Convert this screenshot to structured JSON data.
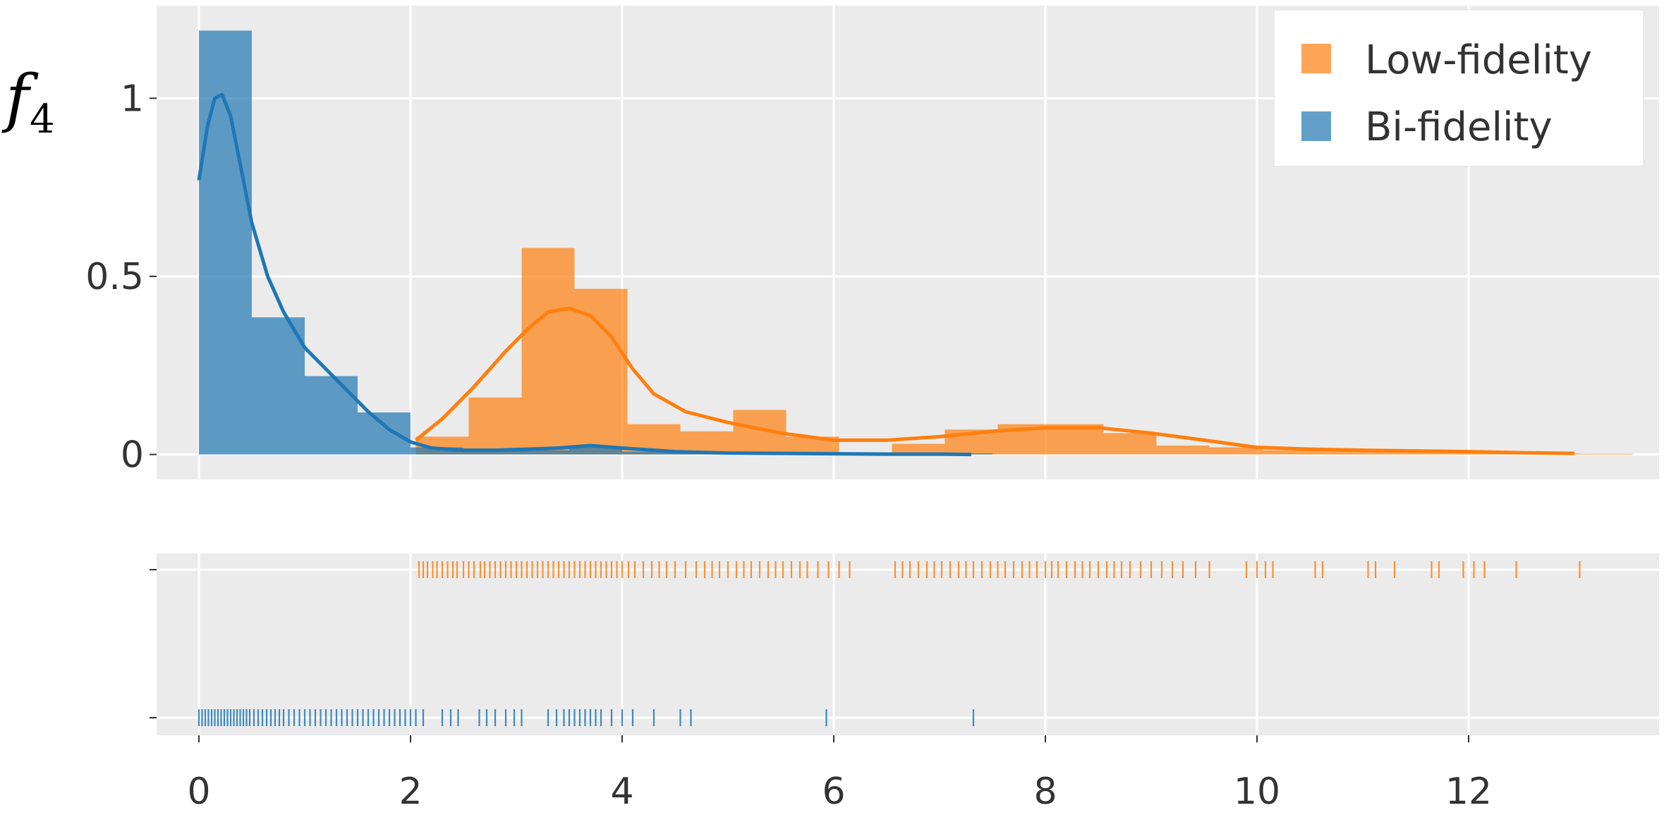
{
  "chart_data": {
    "type": "bar",
    "ylabel": "f",
    "ylabel_subscript": "4",
    "xlim": [
      -0.4,
      13.8
    ],
    "xticks": [
      0,
      2,
      4,
      6,
      8,
      10,
      12
    ],
    "ylim": [
      -0.07,
      1.26
    ],
    "yticks": [
      0,
      0.5,
      1
    ],
    "ytick_labels": [
      "0",
      "0.5",
      "1"
    ],
    "grid": true,
    "legend_position": "top-right",
    "series": [
      {
        "name": "Low-fidelity",
        "color": "#ff7f0e",
        "histogram": [
          {
            "x0": 2.05,
            "x1": 2.55,
            "y": 0.05
          },
          {
            "x0": 2.55,
            "x1": 3.05,
            "y": 0.16
          },
          {
            "x0": 3.05,
            "x1": 3.55,
            "y": 0.58
          },
          {
            "x0": 3.55,
            "x1": 4.05,
            "y": 0.465
          },
          {
            "x0": 4.05,
            "x1": 4.55,
            "y": 0.085
          },
          {
            "x0": 4.55,
            "x1": 5.05,
            "y": 0.065
          },
          {
            "x0": 5.05,
            "x1": 5.55,
            "y": 0.125
          },
          {
            "x0": 5.55,
            "x1": 6.05,
            "y": 0.05
          },
          {
            "x0": 6.05,
            "x1": 6.55,
            "y": 0.0
          },
          {
            "x0": 6.55,
            "x1": 7.05,
            "y": 0.03
          },
          {
            "x0": 7.05,
            "x1": 7.55,
            "y": 0.07
          },
          {
            "x0": 7.55,
            "x1": 8.05,
            "y": 0.085
          },
          {
            "x0": 8.05,
            "x1": 8.55,
            "y": 0.085
          },
          {
            "x0": 8.55,
            "x1": 9.05,
            "y": 0.06
          },
          {
            "x0": 9.05,
            "x1": 9.55,
            "y": 0.025
          },
          {
            "x0": 9.55,
            "x1": 10.05,
            "y": 0.02
          },
          {
            "x0": 10.05,
            "x1": 10.55,
            "y": 0.012
          },
          {
            "x0": 10.55,
            "x1": 11.05,
            "y": 0.01
          },
          {
            "x0": 11.05,
            "x1": 11.55,
            "y": 0.008
          },
          {
            "x0": 11.55,
            "x1": 12.05,
            "y": 0.006
          },
          {
            "x0": 12.05,
            "x1": 12.55,
            "y": 0.004
          },
          {
            "x0": 12.55,
            "x1": 13.05,
            "y": 0.003
          },
          {
            "x0": 13.05,
            "x1": 13.55,
            "y": 0.002
          }
        ],
        "kde": {
          "x": [
            2.05,
            2.3,
            2.6,
            2.9,
            3.1,
            3.3,
            3.5,
            3.7,
            3.9,
            4.1,
            4.3,
            4.6,
            5.0,
            5.5,
            6.0,
            6.5,
            7.0,
            7.5,
            8.0,
            8.5,
            9.0,
            9.5,
            10.0,
            10.5,
            11.0,
            11.5,
            12.0,
            12.5,
            13.0
          ],
          "y": [
            0.04,
            0.1,
            0.19,
            0.29,
            0.35,
            0.4,
            0.41,
            0.39,
            0.33,
            0.24,
            0.17,
            0.12,
            0.09,
            0.06,
            0.04,
            0.04,
            0.05,
            0.065,
            0.075,
            0.075,
            0.06,
            0.04,
            0.02,
            0.015,
            0.012,
            0.01,
            0.008,
            0.005,
            0.003
          ]
        },
        "rug": [
          2.08,
          2.12,
          2.16,
          2.21,
          2.25,
          2.3,
          2.35,
          2.4,
          2.44,
          2.5,
          2.55,
          2.6,
          2.66,
          2.7,
          2.75,
          2.8,
          2.85,
          2.9,
          2.95,
          3.0,
          3.05,
          3.1,
          3.15,
          3.2,
          3.25,
          3.3,
          3.35,
          3.4,
          3.45,
          3.5,
          3.55,
          3.6,
          3.65,
          3.7,
          3.75,
          3.8,
          3.85,
          3.9,
          3.95,
          4.0,
          4.06,
          4.12,
          4.2,
          4.28,
          4.35,
          4.42,
          4.5,
          4.6,
          4.7,
          4.78,
          4.85,
          4.92,
          5.0,
          5.08,
          5.15,
          5.22,
          5.3,
          5.38,
          5.45,
          5.52,
          5.6,
          5.68,
          5.75,
          5.85,
          5.95,
          6.05,
          6.15,
          6.58,
          6.65,
          6.72,
          6.8,
          6.88,
          6.95,
          7.02,
          7.1,
          7.18,
          7.25,
          7.32,
          7.4,
          7.48,
          7.55,
          7.62,
          7.7,
          7.78,
          7.85,
          7.92,
          8.0,
          8.06,
          8.12,
          8.2,
          8.28,
          8.35,
          8.42,
          8.5,
          8.58,
          8.65,
          8.72,
          8.8,
          8.9,
          9.0,
          9.1,
          9.2,
          9.3,
          9.42,
          9.55,
          9.9,
          10.0,
          10.08,
          10.15,
          10.55,
          10.62,
          11.05,
          11.12,
          11.3,
          11.65,
          11.72,
          11.95,
          12.05,
          12.15,
          12.45,
          13.05
        ]
      },
      {
        "name": "Bi-fidelity",
        "color": "#1f77b4",
        "histogram": [
          {
            "x0": 0.0,
            "x1": 0.5,
            "y": 1.19
          },
          {
            "x0": 0.5,
            "x1": 1.0,
            "y": 0.385
          },
          {
            "x0": 1.0,
            "x1": 1.5,
            "y": 0.22
          },
          {
            "x0": 1.5,
            "x1": 2.0,
            "y": 0.118
          },
          {
            "x0": 2.0,
            "x1": 2.5,
            "y": 0.02
          },
          {
            "x0": 2.5,
            "x1": 3.0,
            "y": 0.01
          },
          {
            "x0": 3.0,
            "x1": 3.5,
            "y": 0.012
          },
          {
            "x0": 3.5,
            "x1": 4.0,
            "y": 0.02
          },
          {
            "x0": 4.0,
            "x1": 4.5,
            "y": 0.008
          },
          {
            "x0": 4.5,
            "x1": 5.0,
            "y": 0.005
          },
          {
            "x0": 5.0,
            "x1": 5.5,
            "y": 0.0
          },
          {
            "x0": 5.5,
            "x1": 6.0,
            "y": 0.003
          },
          {
            "x0": 6.0,
            "x1": 6.5,
            "y": 0.0
          },
          {
            "x0": 6.5,
            "x1": 7.0,
            "y": 0.0
          },
          {
            "x0": 7.0,
            "x1": 7.5,
            "y": 0.003
          }
        ],
        "kde": {
          "x": [
            0.0,
            0.08,
            0.15,
            0.22,
            0.3,
            0.4,
            0.5,
            0.65,
            0.8,
            1.0,
            1.2,
            1.4,
            1.6,
            1.8,
            2.0,
            2.2,
            2.5,
            2.8,
            3.1,
            3.4,
            3.7,
            4.0,
            4.5,
            5.0,
            5.5,
            6.0,
            6.5,
            7.0,
            7.3
          ],
          "y": [
            0.77,
            0.92,
            1.0,
            1.01,
            0.95,
            0.8,
            0.65,
            0.5,
            0.4,
            0.3,
            0.24,
            0.18,
            0.12,
            0.07,
            0.035,
            0.018,
            0.012,
            0.012,
            0.015,
            0.018,
            0.025,
            0.018,
            0.008,
            0.004,
            0.003,
            0.002,
            0.001,
            0.001,
            0.0
          ]
        },
        "rug": [
          0.0,
          0.03,
          0.06,
          0.09,
          0.12,
          0.15,
          0.18,
          0.21,
          0.24,
          0.27,
          0.3,
          0.33,
          0.36,
          0.39,
          0.42,
          0.45,
          0.48,
          0.52,
          0.56,
          0.6,
          0.64,
          0.68,
          0.72,
          0.76,
          0.8,
          0.85,
          0.9,
          0.95,
          1.0,
          1.05,
          1.1,
          1.15,
          1.2,
          1.25,
          1.3,
          1.35,
          1.4,
          1.45,
          1.5,
          1.55,
          1.6,
          1.65,
          1.7,
          1.75,
          1.8,
          1.85,
          1.9,
          1.95,
          2.0,
          2.05,
          2.12,
          2.3,
          2.38,
          2.45,
          2.65,
          2.72,
          2.8,
          2.9,
          2.98,
          3.05,
          3.3,
          3.38,
          3.45,
          3.5,
          3.55,
          3.6,
          3.65,
          3.7,
          3.75,
          3.8,
          3.9,
          4.0,
          4.1,
          4.3,
          4.55,
          4.65,
          5.93,
          7.32
        ]
      }
    ]
  }
}
